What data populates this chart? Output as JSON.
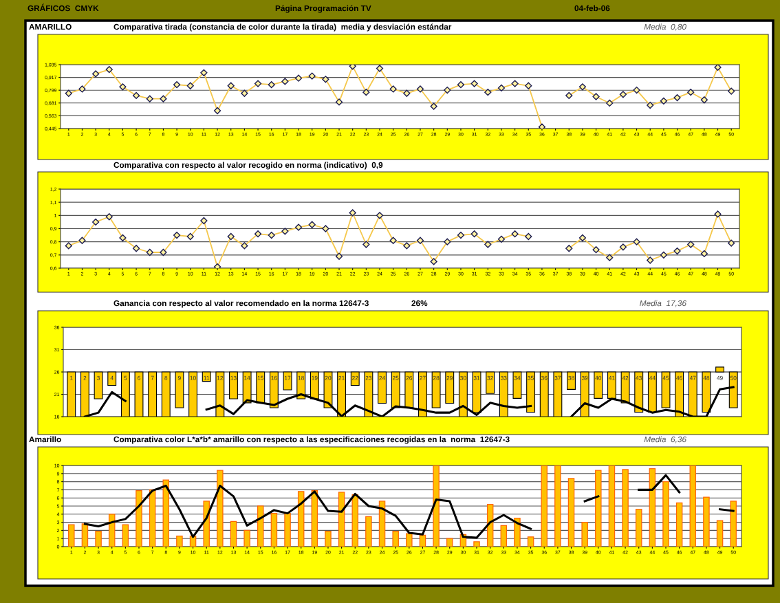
{
  "chart_data": [
    {
      "type": "line",
      "title": "Comparativa tirada (constancia de color durante la tirada)  media y desviación estándar",
      "annotations": [
        "GRÁFICOS  CMYK",
        "Página Programación TV",
        "04-feb-06",
        "AMARILLO",
        "Media  0,80"
      ],
      "categories": [
        "1",
        "2",
        "3",
        "4",
        "5",
        "6",
        "7",
        "8",
        "9",
        "10",
        "11",
        "12",
        "13",
        "14",
        "15",
        "16",
        "17",
        "18",
        "19",
        "20",
        "21",
        "22",
        "23",
        "24",
        "25",
        "26",
        "27",
        "28",
        "29",
        "30",
        "31",
        "32",
        "33",
        "34",
        "35",
        "36",
        "37",
        "38",
        "39",
        "40",
        "41",
        "42",
        "43",
        "44",
        "45",
        "46",
        "47",
        "48",
        "49",
        "50"
      ],
      "series": [
        {
          "color": "#f5c84c",
          "values": [
            0.77,
            0.81,
            0.95,
            0.99,
            0.83,
            0.75,
            0.72,
            0.72,
            0.85,
            0.84,
            0.96,
            0.61,
            0.84,
            0.77,
            0.86,
            0.85,
            0.88,
            0.91,
            0.93,
            0.9,
            0.69,
            1.02,
            0.78,
            1.0,
            0.81,
            0.77,
            0.81,
            0.65,
            0.8,
            0.85,
            0.86,
            0.78,
            0.82,
            0.86,
            0.84,
            0.46,
            null,
            0.75,
            0.83,
            0.74,
            0.68,
            0.76,
            0.8,
            0.66,
            0.7,
            0.73,
            0.78,
            0.71,
            1.01,
            0.79
          ]
        }
      ],
      "ylim": [
        0.445,
        1.035
      ],
      "yticks": [
        {
          "value": 0.445,
          "label": "0,445"
        },
        {
          "value": 0.563,
          "label": "0,563"
        },
        {
          "value": 0.681,
          "label": "0,681"
        },
        {
          "value": 0.799,
          "label": "0,799"
        },
        {
          "value": 0.917,
          "label": "0,917"
        },
        {
          "value": 1.035,
          "label": "1,035"
        }
      ],
      "grid": "y",
      "marker": "diamond",
      "line_style": "solid",
      "legend": false
    },
    {
      "type": "line",
      "title": "Comparativa con respecto al valor recogido en norma (indicativo)  0,9",
      "categories": [
        "1",
        "2",
        "3",
        "4",
        "5",
        "6",
        "7",
        "8",
        "9",
        "10",
        "11",
        "12",
        "13",
        "14",
        "15",
        "16",
        "17",
        "18",
        "19",
        "20",
        "21",
        "22",
        "23",
        "24",
        "25",
        "26",
        "27",
        "28",
        "29",
        "30",
        "31",
        "32",
        "33",
        "34",
        "35",
        "36",
        "37",
        "38",
        "39",
        "40",
        "41",
        "42",
        "43",
        "44",
        "45",
        "46",
        "47",
        "48",
        "49",
        "50"
      ],
      "series": [
        {
          "color": "#f5c84c",
          "values": [
            0.77,
            0.81,
            0.95,
            0.99,
            0.83,
            0.75,
            0.72,
            0.72,
            0.85,
            0.84,
            0.96,
            0.61,
            0.84,
            0.77,
            0.86,
            0.85,
            0.88,
            0.91,
            0.93,
            0.9,
            0.69,
            1.02,
            0.78,
            1.0,
            0.81,
            0.77,
            0.81,
            0.65,
            0.8,
            0.85,
            0.86,
            0.78,
            0.82,
            0.86,
            0.84,
            null,
            null,
            0.75,
            0.83,
            0.74,
            0.68,
            0.76,
            0.8,
            0.66,
            0.7,
            0.73,
            0.78,
            0.71,
            1.01,
            0.79
          ]
        }
      ],
      "ylim": [
        0.6,
        1.2
      ],
      "yticks": [
        {
          "value": 0.6,
          "label": "0,6"
        },
        {
          "value": 0.7,
          "label": "0,7"
        },
        {
          "value": 0.8,
          "label": "0,8"
        },
        {
          "value": 0.9,
          "label": "0,9"
        },
        1,
        {
          "value": 1.1,
          "label": "1,1"
        },
        {
          "value": 1.2,
          "label": "1,2"
        }
      ],
      "grid": "y",
      "marker": "diamond",
      "line_style": "solid",
      "legend": false
    },
    {
      "type": "bar",
      "title": "Ganancia con respecto al valor recomendado en la norma 12647-3",
      "annotations": [
        "26%",
        "Media  17,36"
      ],
      "categories": [
        "1",
        "2",
        "3",
        "4",
        "5",
        "6",
        "7",
        "8",
        "9",
        "10",
        "11",
        "12",
        "13",
        "14",
        "15",
        "16",
        "17",
        "18",
        "19",
        "20",
        "21",
        "22",
        "23",
        "24",
        "25",
        "26",
        "27",
        "28",
        "29",
        "30",
        "31",
        "32",
        "33",
        "34",
        "35",
        "36",
        "37",
        "38",
        "39",
        "40",
        "41",
        "42",
        "43",
        "44",
        "45",
        "46",
        "47",
        "48",
        "49",
        "50"
      ],
      "ref_lines": [
        {
          "axis": "y",
          "value": 26,
          "color": "#666666"
        }
      ],
      "series": [
        {
          "type": "bar",
          "color": "#ffcc00",
          "base": [
            26,
            26,
            26,
            26,
            26,
            26,
            26,
            26,
            26,
            26,
            26,
            26,
            26,
            26,
            26,
            26,
            26,
            26,
            26,
            26,
            26,
            26,
            26,
            26,
            26,
            26,
            26,
            26,
            26,
            26,
            26,
            26,
            26,
            26,
            26,
            26,
            26,
            26,
            26,
            26,
            26,
            26,
            26,
            26,
            26,
            26,
            26,
            26,
            26,
            26
          ],
          "values": [
            -10,
            -10,
            -6,
            -3,
            -10,
            -10,
            -10,
            -10,
            -8,
            -10,
            -2.1,
            -10,
            -6,
            -6.9,
            -6.9,
            -8,
            -4,
            -6,
            -6,
            -8,
            -10,
            -3,
            -10,
            -7,
            -8,
            -8,
            -10,
            -8,
            -7,
            -10,
            -9.1,
            -4.8,
            -10,
            -5.9,
            -9,
            -10,
            -10,
            -3.9,
            -10,
            -5.9,
            -5.9,
            -6.9,
            -9,
            -9,
            -8,
            -10,
            -10,
            -9,
            1.1,
            -8
          ]
        },
        {
          "type": "line",
          "color": "#000000",
          "values": [
            null,
            16,
            16.9,
            21.5,
            19.5,
            null,
            null,
            null,
            null,
            null,
            17.6,
            18.5,
            16.6,
            19.7,
            19.1,
            18.6,
            20,
            21,
            20,
            19.1,
            16.1,
            18.5,
            17.3,
            16,
            18.3,
            18,
            17.5,
            16.9,
            16.9,
            18.4,
            16.4,
            19.1,
            18.4,
            18,
            18.4,
            null,
            null,
            16,
            19,
            18,
            20,
            19.4,
            18,
            16.9,
            17.5,
            17.1,
            16,
            16,
            22.1,
            22.6
          ]
        }
      ],
      "ylim": [
        16,
        36
      ],
      "yticks": [
        16,
        21,
        26,
        31,
        36
      ],
      "grid": "y",
      "tick_labels": "y",
      "legend": false
    },
    {
      "type": "bar",
      "title": "Comparativa color L*a*b* amarillo con respecto a las especificaciones recogidas en la  norma  12647-3",
      "annotations": [
        "Amarillo",
        "Media  6,36"
      ],
      "categories": [
        "1",
        "2",
        "3",
        "4",
        "5",
        "6",
        "7",
        "8",
        "9",
        "10",
        "11",
        "12",
        "13",
        "14",
        "15",
        "16",
        "17",
        "18",
        "19",
        "20",
        "21",
        "22",
        "23",
        "24",
        "25",
        "26",
        "27",
        "28",
        "29",
        "30",
        "31",
        "32",
        "33",
        "34",
        "35",
        "36",
        "37",
        "38",
        "39",
        "40",
        "41",
        "42",
        "43",
        "44",
        "45",
        "46",
        "47",
        "48",
        "49",
        "50"
      ],
      "series": [
        {
          "type": "bar",
          "color": "#ffc000",
          "values": [
            2.7,
            2.8,
            1.9,
            4.0,
            2.7,
            6.9,
            7.0,
            8.2,
            1.3,
            1.3,
            5.6,
            9.4,
            3.1,
            2.0,
            5.0,
            4.1,
            4.1,
            6.8,
            6.9,
            1.9,
            6.7,
            6.4,
            3.7,
            5.6,
            1.9,
            1.6,
            1.4,
            10,
            1.0,
            1.5,
            0.6,
            5.2,
            2.6,
            3.5,
            1.2,
            10,
            10,
            8.4,
            3.0,
            9.4,
            10,
            9.5,
            4.6,
            9.6,
            8.0,
            5.4,
            10,
            6.1,
            3.2,
            5.6
          ]
        },
        {
          "type": "line",
          "color": "#000000",
          "values": [
            null,
            2.8,
            2.5,
            3.0,
            3.4,
            5.0,
            6.9,
            7.5,
            4.6,
            1.2,
            3.5,
            7.5,
            6.2,
            2.6,
            3.5,
            4.5,
            4.1,
            5.3,
            6.8,
            4.4,
            4.3,
            6.5,
            5.0,
            4.7,
            3.8,
            1.7,
            1.5,
            5.8,
            5.6,
            1.2,
            1.1,
            3.0,
            3.9,
            2.9,
            2.2,
            null,
            null,
            null,
            5.6,
            6.2,
            null,
            null,
            7.0,
            7.0,
            8.8,
            6.7,
            null,
            null,
            4.6,
            4.4
          ]
        }
      ],
      "ylim": [
        0,
        10
      ],
      "yticks": [
        0,
        1,
        2,
        3,
        4,
        5,
        6,
        7,
        8,
        9,
        10
      ],
      "grid": "y",
      "legend": false
    }
  ]
}
